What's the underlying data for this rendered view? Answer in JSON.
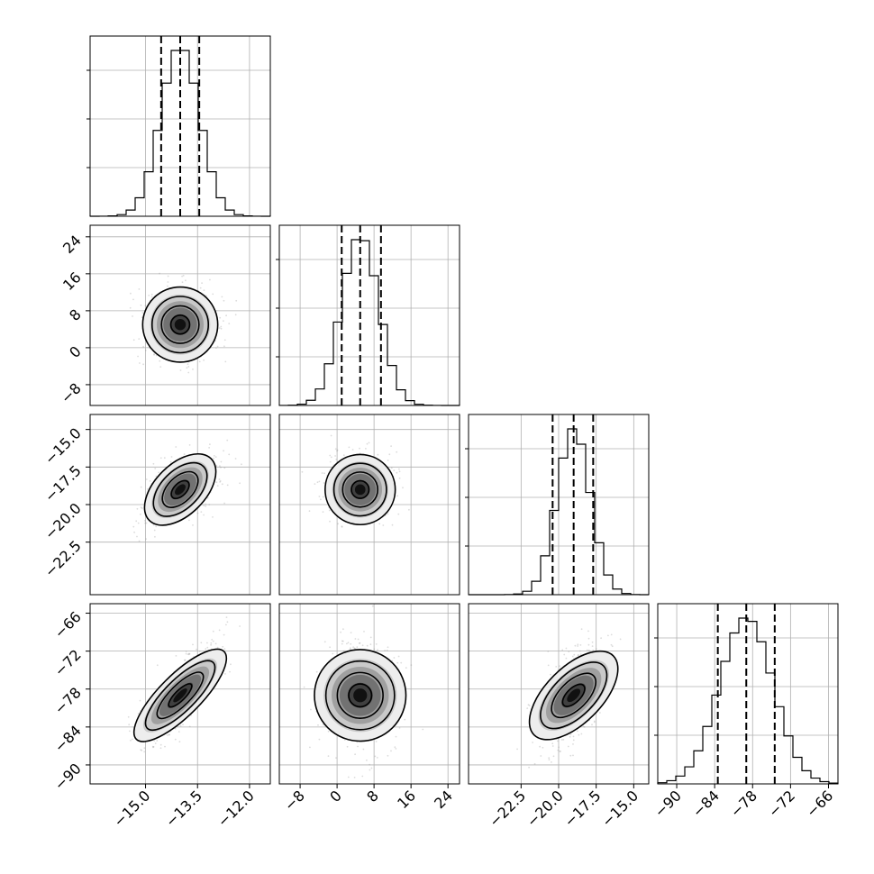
{
  "chart_data": {
    "type": "corner",
    "grid": true,
    "colors": {
      "line": "#000000",
      "grid": "#b0b0b0",
      "points": "#9a9a9a"
    },
    "parameters": [
      {
        "mean": -14.0,
        "sd": 0.55,
        "range": [
          -16.6,
          -11.4
        ],
        "quantiles": [
          -14.55,
          -14.0,
          -13.45
        ],
        "ticks": [
          -15.0,
          -13.5,
          -12.0
        ],
        "tick_labels": [
          "−15.0",
          "−13.5",
          "−12.0"
        ]
      },
      {
        "mean": 5.0,
        "sd": 4.0,
        "range": [
          -12.5,
          26.5
        ],
        "quantiles": [
          1.0,
          5.0,
          9.5
        ],
        "ticks": [
          -8,
          0,
          8,
          16,
          24
        ],
        "tick_labels": [
          "−8",
          "0",
          "8",
          "16",
          "24"
        ]
      },
      {
        "mean": -19.0,
        "sd": 1.1,
        "range": [
          -26.0,
          -14.0
        ],
        "quantiles": [
          -20.4,
          -19.0,
          -17.7
        ],
        "ticks": [
          -22.5,
          -20.0,
          -17.5,
          -15.0
        ],
        "tick_labels": [
          "−22.5",
          "−20.0",
          "−17.5",
          "−15.0"
        ]
      },
      {
        "mean": -79.0,
        "sd": 4.2,
        "range": [
          -93.0,
          -64.5
        ],
        "quantiles": [
          -83.5,
          -79.0,
          -74.5
        ],
        "ticks": [
          -90,
          -84,
          -78,
          -72,
          -66
        ],
        "tick_labels": [
          "−90",
          "−84",
          "−78",
          "−72",
          "−66"
        ]
      }
    ],
    "correlations": [
      [
        1.0,
        0.0,
        0.5,
        0.8
      ],
      [
        0.0,
        1.0,
        0.0,
        0.0
      ],
      [
        0.5,
        0.0,
        1.0,
        0.6
      ],
      [
        0.8,
        0.0,
        0.6,
        1.0
      ]
    ],
    "histogram_bins": 20,
    "contour_levels_sigma": [
      0.5,
      1.0,
      1.5,
      2.0
    ]
  }
}
